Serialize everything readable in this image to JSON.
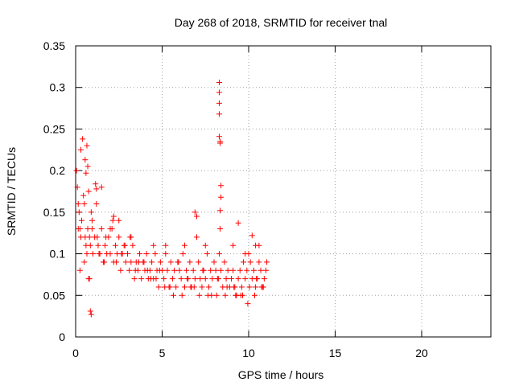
{
  "chart_data": {
    "type": "scatter",
    "title": "Day 268 of 2018, SRMTID for receiver tnal",
    "xlabel": "GPS time / hours",
    "ylabel": "SRMTID / TECUs",
    "xlim": [
      0,
      24
    ],
    "ylim": [
      0,
      0.35
    ],
    "xticks": [
      0,
      5,
      10,
      15,
      20
    ],
    "xtick_labels": [
      "0",
      "5",
      "10",
      "15",
      "20"
    ],
    "yticks": [
      0,
      0.05,
      0.1,
      0.15,
      0.2,
      0.25,
      0.3,
      0.35
    ],
    "ytick_labels": [
      "0",
      "0.05",
      "0.1",
      "0.15",
      "0.2",
      "0.25",
      "0.3",
      "0.35"
    ],
    "grid": true,
    "marker": "+",
    "color": "#ff0000",
    "series": [
      {
        "name": "SRMTID",
        "x": [
          0.05,
          0.1,
          0.15,
          0.2,
          0.25,
          0.3,
          0.35,
          0.45,
          0.5,
          0.55,
          0.6,
          0.65,
          0.7,
          0.8,
          0.85,
          0.9,
          0.95,
          1.0,
          1.1,
          1.2,
          1.3,
          1.4,
          1.5,
          1.6,
          1.7,
          1.8,
          1.9,
          2.0,
          2.1,
          2.2,
          2.3,
          2.4,
          2.5,
          2.6,
          2.7,
          2.8,
          2.9,
          3.0,
          3.1,
          3.2,
          3.3,
          3.4,
          3.5,
          3.6,
          3.7,
          3.8,
          3.9,
          4.0,
          4.1,
          4.2,
          4.3,
          4.4,
          4.5,
          4.6,
          4.7,
          4.8,
          4.9,
          5.0,
          5.1,
          5.2,
          5.3,
          5.4,
          5.5,
          5.6,
          5.7,
          5.8,
          5.9,
          6.0,
          6.1,
          6.2,
          6.3,
          6.4,
          6.5,
          6.6,
          6.7,
          6.8,
          6.9,
          7.0,
          7.1,
          7.2,
          7.3,
          7.4,
          7.5,
          7.6,
          7.7,
          7.8,
          7.9,
          8.0,
          8.1,
          8.2,
          8.3,
          8.35,
          8.4,
          8.5,
          8.6,
          8.7,
          8.8,
          8.9,
          9.0,
          9.1,
          9.2,
          9.3,
          9.4,
          9.5,
          9.6,
          9.7,
          9.8,
          9.9,
          10.0,
          10.1,
          10.2,
          10.3,
          10.4,
          10.5,
          10.6,
          10.7,
          10.8,
          10.9,
          11.0,
          11.05,
          8.3,
          8.3,
          8.3,
          8.3,
          8.3,
          8.35,
          8.35,
          8.4,
          8.4,
          8.35,
          0.4,
          0.55,
          0.6,
          0.7,
          0.75,
          0.85,
          0.9,
          1.15,
          1.2,
          2.2,
          2.5,
          6.9,
          7.0,
          9.4,
          10.2,
          10.6,
          0.3,
          0.65,
          0.8,
          1.5,
          2.0,
          3.2,
          4.5,
          5.2,
          6.3,
          7.5,
          9.1,
          9.8,
          10.4,
          0.15,
          0.5,
          0.95,
          1.35,
          1.75,
          2.35,
          2.85,
          3.45,
          3.95,
          4.35,
          4.85,
          5.45,
          5.95,
          6.45,
          6.85,
          7.35,
          7.85,
          8.25,
          8.75,
          9.25,
          9.65,
          10.05,
          10.45,
          10.85,
          0.25,
          0.75,
          1.25,
          1.65,
          2.15,
          2.65,
          3.15,
          3.65,
          4.15,
          4.65,
          5.15,
          5.65,
          6.15,
          6.65,
          7.15,
          7.65,
          8.15,
          8.65,
          9.15,
          9.55,
          9.95,
          10.35,
          10.75
        ],
        "y": [
          0.2,
          0.18,
          0.16,
          0.15,
          0.13,
          0.12,
          0.14,
          0.17,
          0.16,
          0.12,
          0.11,
          0.1,
          0.13,
          0.12,
          0.11,
          0.15,
          0.13,
          0.1,
          0.12,
          0.16,
          0.11,
          0.1,
          0.13,
          0.09,
          0.11,
          0.1,
          0.12,
          0.1,
          0.13,
          0.09,
          0.11,
          0.1,
          0.12,
          0.08,
          0.1,
          0.11,
          0.09,
          0.1,
          0.08,
          0.09,
          0.11,
          0.07,
          0.09,
          0.08,
          0.1,
          0.07,
          0.09,
          0.08,
          0.1,
          0.07,
          0.08,
          0.09,
          0.07,
          0.1,
          0.08,
          0.06,
          0.09,
          0.08,
          0.07,
          0.1,
          0.08,
          0.06,
          0.09,
          0.07,
          0.08,
          0.06,
          0.09,
          0.08,
          0.07,
          0.1,
          0.06,
          0.08,
          0.07,
          0.09,
          0.06,
          0.08,
          0.07,
          0.12,
          0.09,
          0.07,
          0.06,
          0.08,
          0.07,
          0.1,
          0.06,
          0.08,
          0.07,
          0.09,
          0.08,
          0.07,
          0.1,
          0.13,
          0.08,
          0.06,
          0.09,
          0.07,
          0.08,
          0.06,
          0.07,
          0.08,
          0.06,
          0.05,
          0.07,
          0.08,
          0.06,
          0.09,
          0.07,
          0.08,
          0.1,
          0.09,
          0.07,
          0.08,
          0.06,
          0.07,
          0.09,
          0.08,
          0.06,
          0.07,
          0.08,
          0.09,
          0.306,
          0.294,
          0.281,
          0.268,
          0.241,
          0.235,
          0.233,
          0.182,
          0.168,
          0.152,
          0.238,
          0.213,
          0.197,
          0.205,
          0.175,
          0.031,
          0.027,
          0.184,
          0.178,
          0.145,
          0.14,
          0.15,
          0.145,
          0.137,
          0.122,
          0.11,
          0.225,
          0.23,
          0.07,
          0.18,
          0.13,
          0.12,
          0.11,
          0.11,
          0.11,
          0.11,
          0.11,
          0.1,
          0.11,
          0.13,
          0.09,
          0.14,
          0.1,
          0.12,
          0.09,
          0.11,
          0.08,
          0.09,
          0.07,
          0.08,
          0.06,
          0.09,
          0.07,
          0.06,
          0.08,
          0.05,
          0.07,
          0.06,
          0.05,
          0.05,
          0.06,
          0.07,
          0.06,
          0.08,
          0.07,
          0.12,
          0.09,
          0.14,
          0.1,
          0.12,
          0.09,
          0.08,
          0.07,
          0.06,
          0.05,
          0.05,
          0.06,
          0.05,
          0.05,
          0.05,
          0.05,
          0.06,
          0.05,
          0.04,
          0.05,
          0.06
        ]
      }
    ]
  }
}
